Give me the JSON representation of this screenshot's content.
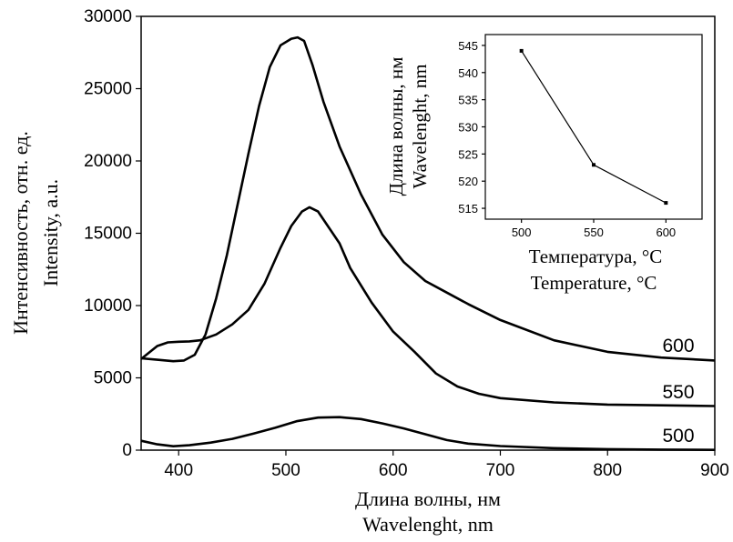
{
  "chart_data": [
    {
      "type": "line",
      "xlabel": [
        "Длина волны, нм",
        "Wavelenght, nm"
      ],
      "ylabel": [
        "Интенсивность, отн. ед.",
        "Intensity, a.u."
      ],
      "xlim": [
        365,
        900
      ],
      "ylim": [
        0,
        30000
      ],
      "xticks": [
        400,
        500,
        600,
        700,
        800,
        900
      ],
      "yticks": [
        0,
        5000,
        10000,
        15000,
        20000,
        25000,
        30000
      ],
      "grid": false,
      "series": [
        {
          "name": "500",
          "x": [
            365,
            380,
            395,
            410,
            430,
            450,
            470,
            490,
            510,
            530,
            550,
            570,
            590,
            610,
            630,
            650,
            670,
            700,
            750,
            800,
            850,
            900
          ],
          "y": [
            650,
            400,
            270,
            340,
            520,
            780,
            1150,
            1550,
            2000,
            2250,
            2280,
            2150,
            1850,
            1500,
            1100,
            700,
            450,
            280,
            140,
            70,
            40,
            20
          ]
        },
        {
          "name": "550",
          "x": [
            365,
            380,
            390,
            400,
            410,
            420,
            435,
            450,
            465,
            480,
            495,
            505,
            515,
            522,
            530,
            540,
            550,
            560,
            580,
            600,
            620,
            640,
            660,
            680,
            700,
            750,
            800,
            850,
            900
          ],
          "y": [
            6300,
            7200,
            7450,
            7500,
            7520,
            7600,
            8000,
            8700,
            9700,
            11500,
            14000,
            15500,
            16500,
            16800,
            16500,
            15400,
            14300,
            12600,
            10200,
            8200,
            6800,
            5300,
            4400,
            3900,
            3600,
            3300,
            3150,
            3100,
            3050
          ]
        },
        {
          "name": "600",
          "x": [
            365,
            380,
            395,
            405,
            415,
            425,
            435,
            445,
            455,
            465,
            475,
            485,
            495,
            505,
            511,
            517,
            525,
            535,
            550,
            570,
            590,
            610,
            630,
            650,
            670,
            700,
            750,
            800,
            850,
            900
          ],
          "y": [
            6350,
            6250,
            6150,
            6200,
            6600,
            8000,
            10500,
            13500,
            17000,
            20500,
            23800,
            26500,
            28000,
            28450,
            28550,
            28300,
            26600,
            24100,
            21000,
            17700,
            14900,
            13000,
            11700,
            10900,
            10100,
            9000,
            7600,
            6800,
            6400,
            6200
          ]
        }
      ],
      "series_labels": [
        "600",
        "550",
        "500"
      ]
    },
    {
      "type": "line",
      "xlabel": [
        "Температура, °C",
        "Temperature, °C"
      ],
      "ylabel": [
        "Длина волны, нм",
        "Wavelenght, nm"
      ],
      "xlim": [
        475,
        625
      ],
      "ylim": [
        513,
        547
      ],
      "xticks": [
        500,
        550,
        600
      ],
      "yticks": [
        515,
        520,
        525,
        530,
        535,
        540,
        545
      ],
      "grid": false,
      "series": [
        {
          "x": [
            500,
            550,
            600
          ],
          "y": [
            544,
            523,
            516
          ]
        }
      ]
    }
  ]
}
